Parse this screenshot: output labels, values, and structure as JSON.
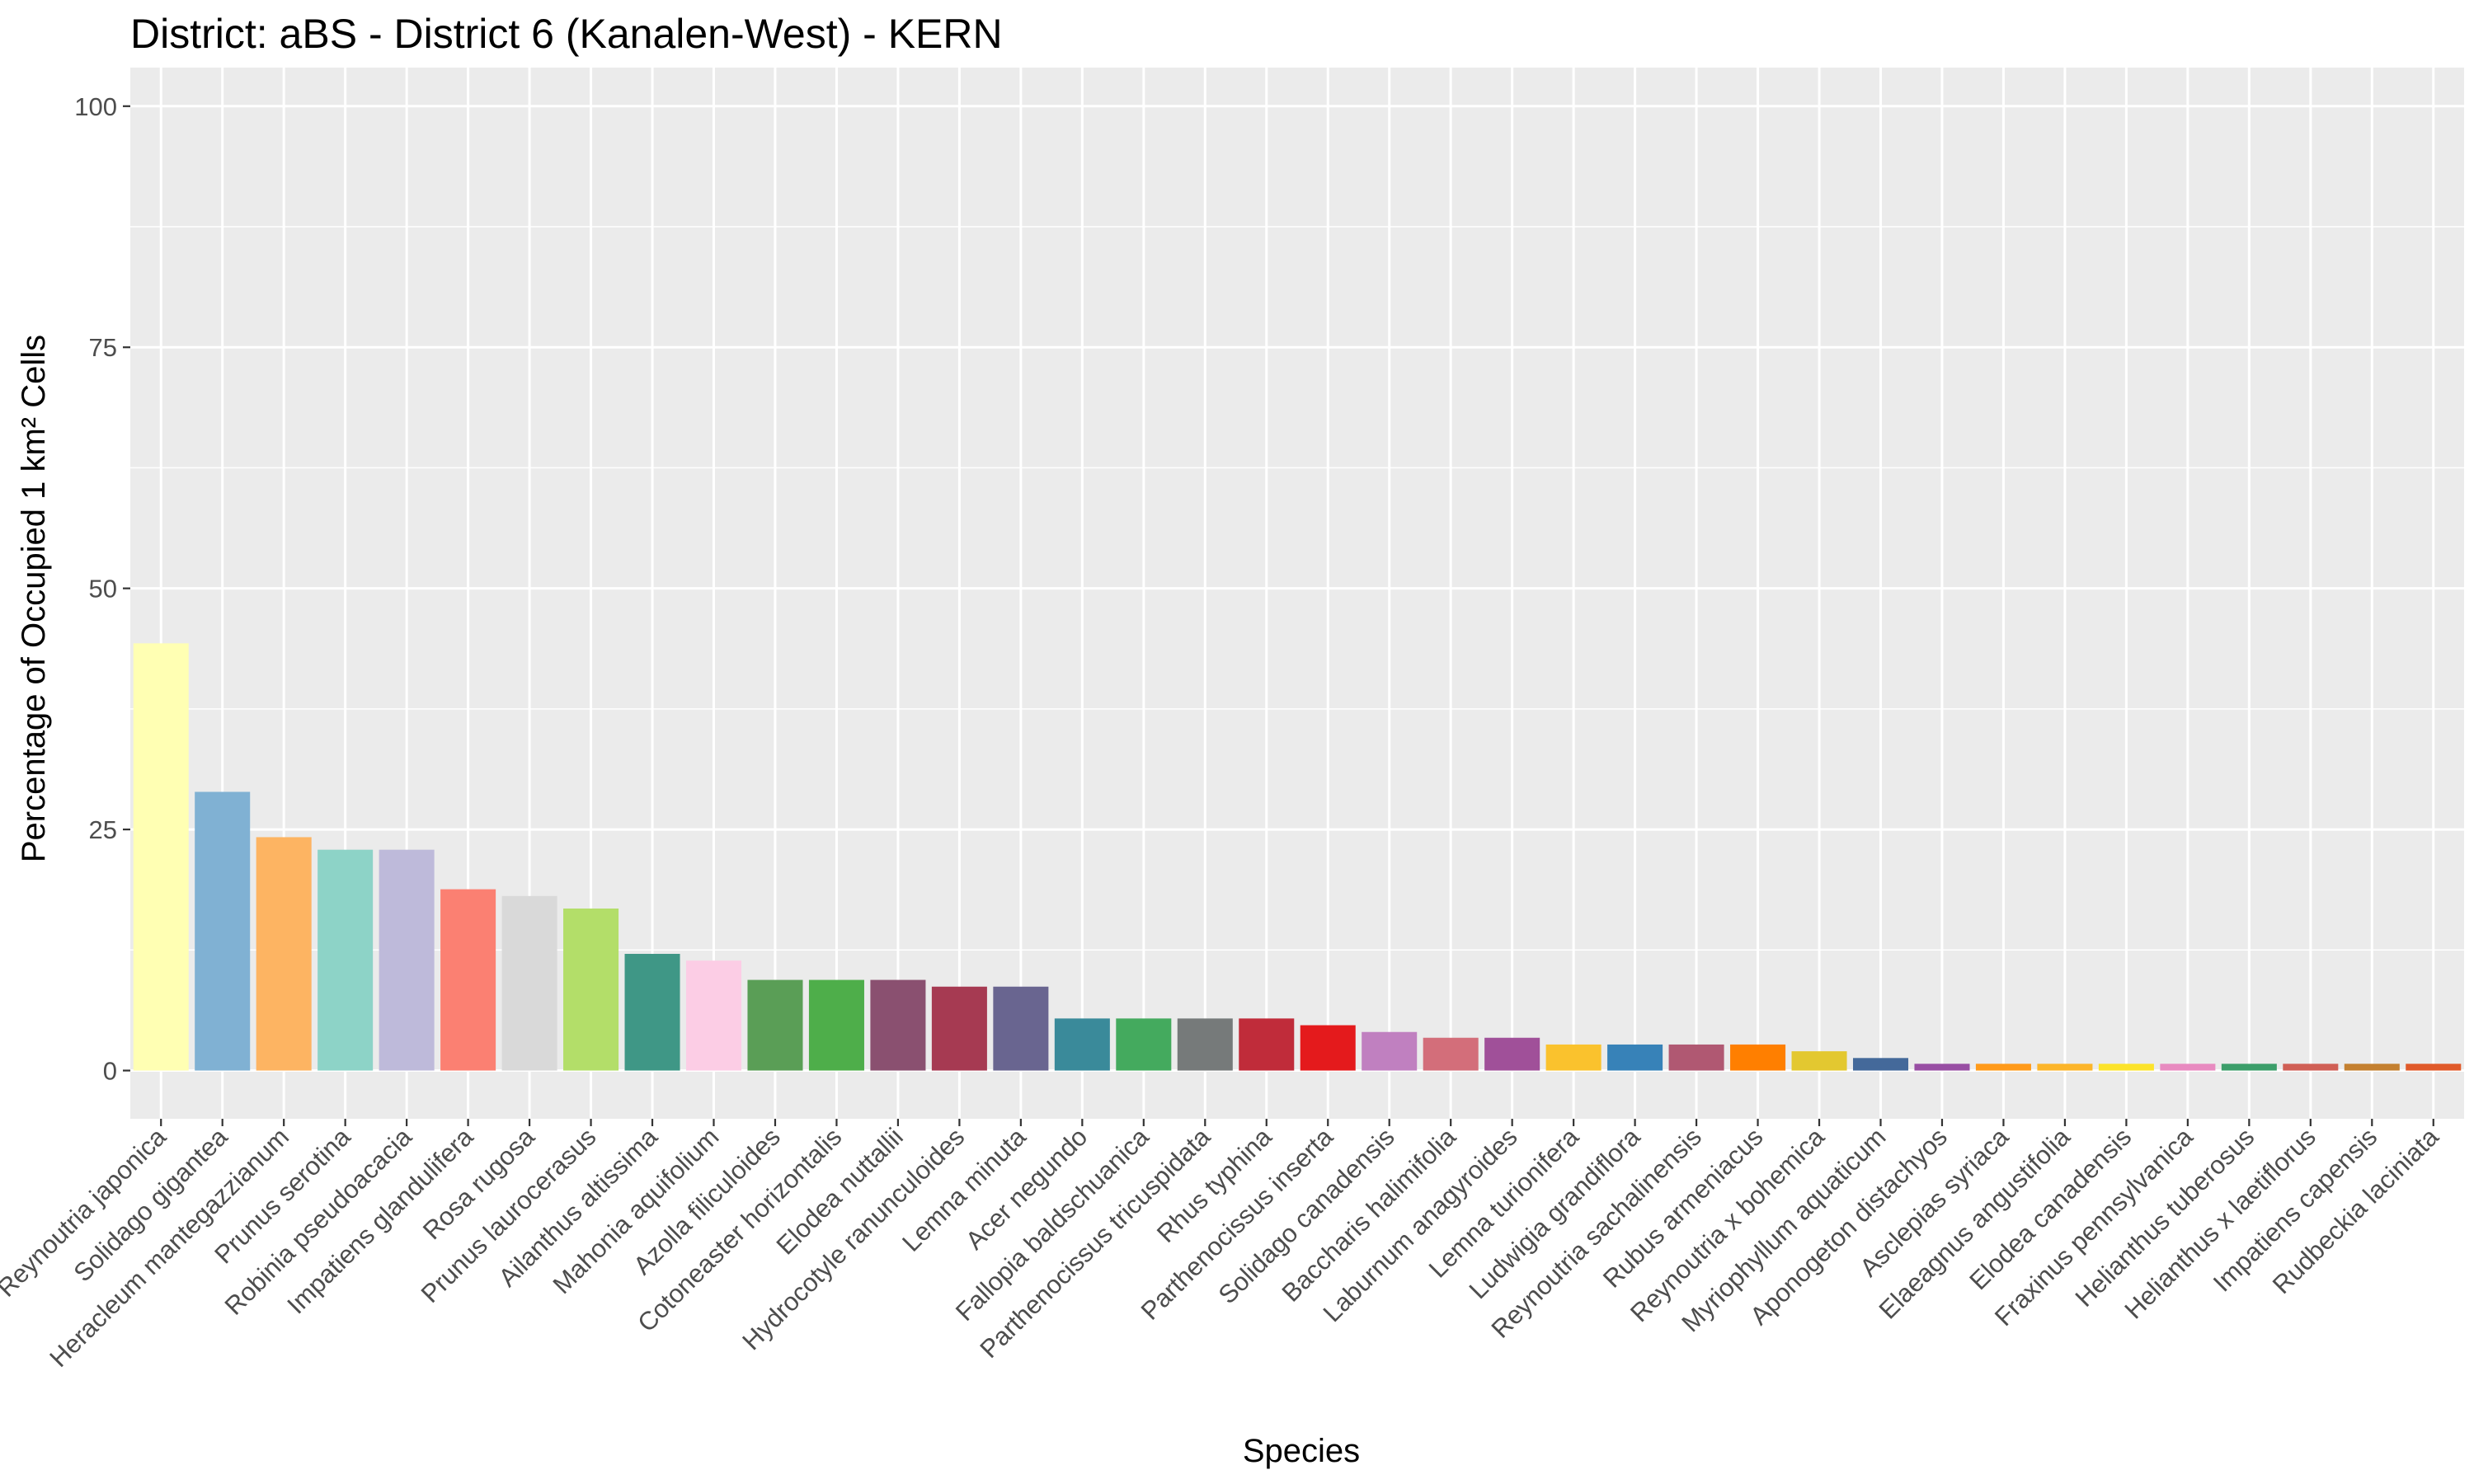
{
  "chart_data": {
    "type": "bar",
    "title": "District: aBS - District 6 (Kanalen-West)  - KERN",
    "xlabel": "Species",
    "ylabel": "Percentage of Occupied 1 km² Cells",
    "ylim": [
      -5,
      104
    ],
    "yticks": [
      0,
      25,
      50,
      75,
      100
    ],
    "grid": true,
    "legend": "none",
    "background": "#ebebeb",
    "categories": [
      "Reynoutria japonica",
      "Solidago gigantea",
      "Heracleum mantegazzianum",
      "Prunus serotina",
      "Robinia pseudoacacia",
      "Impatiens glandulifera",
      "Rosa rugosa",
      "Prunus laurocerasus",
      "Ailanthus altissima",
      "Mahonia aquifolium",
      "Azolla filiculoides",
      "Cotoneaster horizontalis",
      "Elodea nuttallii",
      "Hydrocotyle ranunculoides",
      "Lemna minuta",
      "Acer negundo",
      "Fallopia baldschuanica",
      "Parthenocissus tricuspidata",
      "Rhus typhina",
      "Parthenocissus inserta",
      "Solidago canadensis",
      "Baccharis halimifolia",
      "Laburnum anagyroides",
      "Lemna turionifera",
      "Ludwigia grandiflora",
      "Reynoutria sachalinensis",
      "Rubus armeniacus",
      "Reynoutria x bohemica",
      "Myriophyllum aquaticum",
      "Aponogeton distachyos",
      "Asclepias syriaca",
      "Elaeagnus angustifolia",
      "Elodea canadensis",
      "Fraxinus pennsylvanica",
      "Helianthus tuberosus",
      "Helianthus x laetiflorus",
      "Impatiens capensis",
      "Rudbeckia laciniata"
    ],
    "values": [
      44.3,
      28.9,
      24.2,
      22.9,
      22.9,
      18.8,
      18.1,
      16.8,
      12.1,
      11.4,
      9.4,
      9.4,
      9.4,
      8.7,
      8.7,
      5.4,
      5.4,
      5.4,
      5.4,
      4.7,
      4.0,
      3.4,
      3.4,
      2.7,
      2.7,
      2.7,
      2.7,
      2.0,
      1.3,
      0.7,
      0.7,
      0.7,
      0.7,
      0.7,
      0.7,
      0.7,
      0.7,
      0.7
    ],
    "colors": [
      "#ffffb3",
      "#80b1d3",
      "#fdb462",
      "#8dd3c7",
      "#bebada",
      "#fb8072",
      "#d9d9d9",
      "#b3de69",
      "#3f9786",
      "#fccde5",
      "#5a9e56",
      "#4eae4a",
      "#8a5070",
      "#a63a52",
      "#696590",
      "#3a8a9a",
      "#44aa5e",
      "#767a7a",
      "#c02c3a",
      "#e41a1c",
      "#c080c0",
      "#d36e7a",
      "#a05099",
      "#fac22d",
      "#3782b8",
      "#b05872",
      "#ff7f00",
      "#e3c830",
      "#44699a",
      "#984ea3",
      "#ff9a1a",
      "#fcb52a",
      "#fce32a",
      "#e88ac0",
      "#3c9e6a",
      "#d05f55",
      "#c48030",
      "#e05a2a"
    ]
  }
}
